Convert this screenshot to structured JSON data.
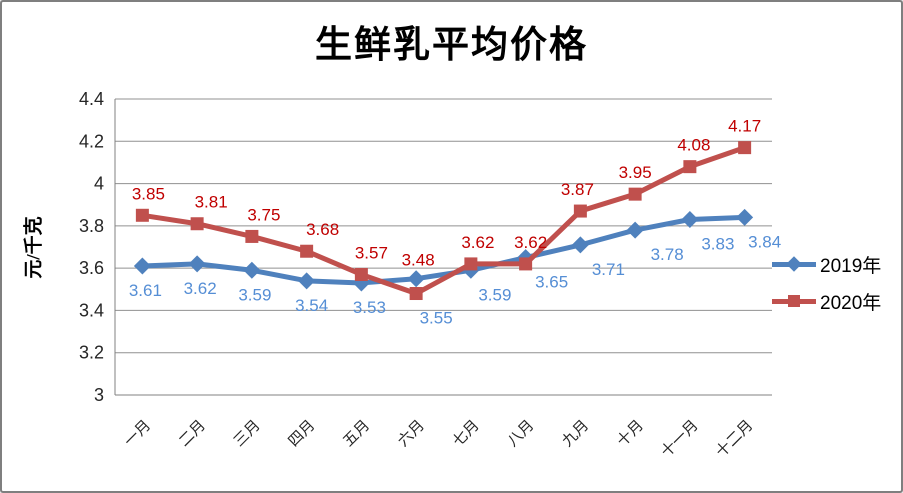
{
  "page": {
    "background_color": "#FFFFFF",
    "frame_border_color": "#7F7F7F"
  },
  "chart_data": {
    "type": "line",
    "title": "生鲜乳平均价格",
    "ylabel": "元/千克",
    "xlabel": "",
    "categories": [
      "一月",
      "二月",
      "三月",
      "四月",
      "五月",
      "六月",
      "七月",
      "八月",
      "九月",
      "十月",
      "十一月",
      "十二月"
    ],
    "series": [
      {
        "name": "2019年",
        "color": "#4F81BD",
        "label_color": "#558ED5",
        "marker": "diamond",
        "values": [
          3.61,
          3.62,
          3.59,
          3.54,
          3.53,
          3.55,
          3.59,
          3.65,
          3.71,
          3.78,
          3.83,
          3.84
        ]
      },
      {
        "name": "2020年",
        "color": "#C0504D",
        "label_color": "#C00000",
        "marker": "square",
        "values": [
          3.85,
          3.81,
          3.75,
          3.68,
          3.57,
          3.48,
          3.62,
          3.62,
          3.87,
          3.95,
          4.08,
          4.17
        ]
      }
    ],
    "ylim": [
      3,
      4.4
    ],
    "ytick_step": 0.2,
    "ytick_labels": [
      "3",
      "3.2",
      "3.4",
      "3.6",
      "3.8",
      "4",
      "4.2",
      "4.4"
    ],
    "grid": true,
    "grid_color": "#909090",
    "axis_color": "#808080",
    "tick_label_color": "#262626",
    "legend_position": "right",
    "data_labels_visible": true
  }
}
